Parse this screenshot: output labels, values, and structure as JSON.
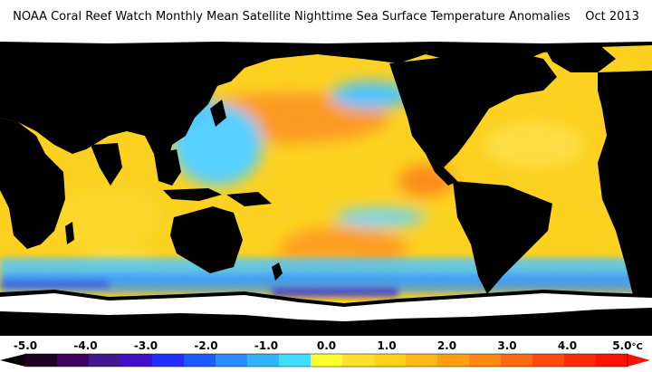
{
  "title": "NOAA Coral Reef Watch Monthly Mean Satellite Nighttime Sea Surface Temperature Anomalies    Oct 2013",
  "colors": {
    "land": "#000000",
    "ice": "#ffffff",
    "ocean_base": "#ffd21a",
    "anomaly_warm": "#ff8c1a",
    "anomaly_hot": "#ff3a10",
    "anomaly_cool": "#3cc8ff",
    "anomaly_cold": "#2a6cff",
    "anomaly_cold_deep": "#3a20c8"
  },
  "legend": {
    "ticks": [
      "-5.0",
      "-4.0",
      "-3.0",
      "-2.0",
      "-1.0",
      "0.0",
      "1.0",
      "2.0",
      "3.0",
      "4.0",
      "5.0"
    ],
    "unit": "°C",
    "swatches": [
      "#200020",
      "#400060",
      "#401890",
      "#4010c8",
      "#2030ff",
      "#1f5aff",
      "#2d8cff",
      "#30b4ff",
      "#40dcff",
      "#ffff30",
      "#ffe02a",
      "#ffd21a",
      "#ffb818",
      "#ffa014",
      "#ff8812",
      "#ff6a10",
      "#ff4a0c",
      "#ff2a08",
      "#ff1000"
    ]
  }
}
